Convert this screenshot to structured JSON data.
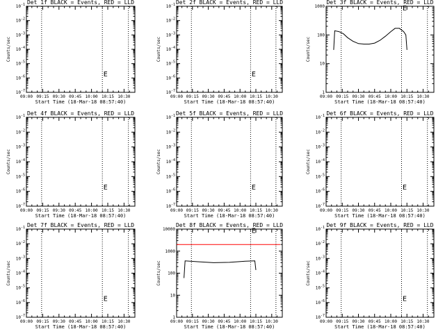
{
  "figure": {
    "xlabel": "Start Time (18-Mar-18 08:57:40)",
    "ylabel": "Counts/sec"
  },
  "chart_data": [
    {
      "type": "line",
      "title": "Det 1f BLACK = Events, RED = LLD",
      "xlabel": "Start Time (18-Mar-18 08:57:40)",
      "ylabel": "Counts/sec",
      "xlim": [
        "09:00",
        "10:40"
      ],
      "x_ticks": [
        "09:00",
        "09:15",
        "09:30",
        "09:45",
        "10:00",
        "10:15",
        "10:30"
      ],
      "y_scale": "log",
      "ylim": [
        1e-07,
        0.1
      ],
      "y_ticks": [
        "10^-7",
        "10^-6",
        "10^-5",
        "10^-4",
        "10^-3",
        "10^-2",
        "10^-1"
      ],
      "vlines": [
        "09:14",
        "10:10",
        "10:34"
      ],
      "annotations": [
        {
          "text": "E",
          "x": "10:11",
          "y": 2e-06
        }
      ],
      "series": []
    },
    {
      "type": "line",
      "title": "Det 2f BLACK = Events, RED = LLD",
      "xlabel": "Start Time (18-Mar-18 08:57:40)",
      "ylabel": "Counts/sec",
      "xlim": [
        "09:00",
        "10:40"
      ],
      "x_ticks": [
        "09:00",
        "09:15",
        "09:30",
        "09:45",
        "10:00",
        "10:15",
        "10:30"
      ],
      "y_scale": "log",
      "ylim": [
        1e-07,
        0.1
      ],
      "y_ticks": [
        "10^-7",
        "10^-6",
        "10^-5",
        "10^-4",
        "10^-3",
        "10^-2",
        "10^-1"
      ],
      "vlines": [
        "09:14",
        "10:10",
        "10:34"
      ],
      "annotations": [
        {
          "text": "E",
          "x": "10:11",
          "y": 2e-06
        }
      ],
      "series": []
    },
    {
      "type": "line",
      "title": "Det 3f BLACK = Events, RED = LLD",
      "xlabel": "Start Time (18-Mar-18 08:57:40)",
      "ylabel": "Counts/sec",
      "xlim": [
        "09:00",
        "10:40"
      ],
      "x_ticks": [
        "09:00",
        "09:15",
        "09:30",
        "09:45",
        "10:00",
        "10:15",
        "10:30"
      ],
      "y_scale": "log",
      "ylim": [
        1,
        1000
      ],
      "y_ticks": [
        "1",
        "10",
        "100",
        "1000"
      ],
      "vlines": [
        "09:14",
        "10:10",
        "10:34"
      ],
      "annotations": [
        {
          "text": "E",
          "x": "10:11",
          "y": 900
        }
      ],
      "series": [
        {
          "color": "#000000",
          "x": [
            "09:07",
            "09:08",
            "09:12",
            "09:16",
            "09:20",
            "09:25",
            "09:30",
            "09:35",
            "09:40",
            "09:45",
            "09:50",
            "09:55",
            "10:00",
            "10:04",
            "10:08",
            "10:12",
            "10:14",
            "10:15"
          ],
          "y": [
            30,
            140,
            130,
            110,
            80,
            60,
            50,
            48,
            48,
            52,
            65,
            90,
            130,
            170,
            170,
            130,
            100,
            30
          ]
        }
      ]
    },
    {
      "type": "line",
      "title": "Det 4f BLACK = Events, RED = LLD",
      "xlabel": "Start Time (18-Mar-18 08:57:40)",
      "ylabel": "Counts/sec",
      "xlim": [
        "09:00",
        "10:40"
      ],
      "x_ticks": [
        "09:00",
        "09:15",
        "09:30",
        "09:45",
        "10:00",
        "10:15",
        "10:30"
      ],
      "y_scale": "log",
      "ylim": [
        1e-07,
        0.1
      ],
      "y_ticks": [
        "10^-7",
        "10^-6",
        "10^-5",
        "10^-4",
        "10^-3",
        "10^-2",
        "10^-1"
      ],
      "vlines": [
        "09:14",
        "10:10",
        "10:34"
      ],
      "annotations": [
        {
          "text": "E",
          "x": "10:11",
          "y": 2e-06
        }
      ],
      "series": []
    },
    {
      "type": "line",
      "title": "Det 5f BLACK = Events, RED = LLD",
      "xlabel": "Start Time (18-Mar-18 08:57:40)",
      "ylabel": "Counts/sec",
      "xlim": [
        "09:00",
        "10:40"
      ],
      "x_ticks": [
        "09:00",
        "09:15",
        "09:30",
        "09:45",
        "10:00",
        "10:15",
        "10:30"
      ],
      "y_scale": "log",
      "ylim": [
        1e-07,
        0.1
      ],
      "y_ticks": [
        "10^-7",
        "10^-6",
        "10^-5",
        "10^-4",
        "10^-3",
        "10^-2",
        "10^-1"
      ],
      "vlines": [
        "09:14",
        "10:10",
        "10:34"
      ],
      "annotations": [
        {
          "text": "E",
          "x": "10:11",
          "y": 2e-06
        }
      ],
      "series": []
    },
    {
      "type": "line",
      "title": "Det 6f BLACK = Events, RED = LLD",
      "xlabel": "Start Time (18-Mar-18 08:57:40)",
      "ylabel": "Counts/sec",
      "xlim": [
        "09:00",
        "10:40"
      ],
      "x_ticks": [
        "09:00",
        "09:15",
        "09:30",
        "09:45",
        "10:00",
        "10:15",
        "10:30"
      ],
      "y_scale": "log",
      "ylim": [
        1e-07,
        0.1
      ],
      "y_ticks": [
        "10^-7",
        "10^-6",
        "10^-5",
        "10^-4",
        "10^-3",
        "10^-2",
        "10^-1"
      ],
      "vlines": [
        "09:14",
        "10:10",
        "10:34"
      ],
      "annotations": [
        {
          "text": "E",
          "x": "10:11",
          "y": 2e-06
        }
      ],
      "series": []
    },
    {
      "type": "line",
      "title": "Det 7f BLACK = Events, RED = LLD",
      "xlabel": "Start Time (18-Mar-18 08:57:40)",
      "ylabel": "Counts/sec",
      "xlim": [
        "09:00",
        "10:40"
      ],
      "x_ticks": [
        "09:00",
        "09:15",
        "09:30",
        "09:45",
        "10:00",
        "10:15",
        "10:30"
      ],
      "y_scale": "log",
      "ylim": [
        1e-07,
        0.1
      ],
      "y_ticks": [
        "10^-7",
        "10^-6",
        "10^-5",
        "10^-4",
        "10^-3",
        "10^-2",
        "10^-1"
      ],
      "vlines": [
        "09:14",
        "10:10",
        "10:34"
      ],
      "annotations": [
        {
          "text": "E",
          "x": "10:11",
          "y": 2e-06
        }
      ],
      "series": []
    },
    {
      "type": "line",
      "title": "Det 8f BLACK = Events, RED = LLD",
      "xlabel": "Start Time (18-Mar-18 08:57:40)",
      "ylabel": "Counts/sec",
      "xlim": [
        "09:00",
        "10:40"
      ],
      "x_ticks": [
        "09:00",
        "09:15",
        "09:30",
        "09:45",
        "10:00",
        "10:15",
        "10:30"
      ],
      "y_scale": "log",
      "ylim": [
        1,
        10000
      ],
      "y_ticks": [
        "1",
        "10",
        "100",
        "1000",
        "10000"
      ],
      "vlines": [
        "09:14",
        "10:10",
        "10:34"
      ],
      "annotations": [
        {
          "text": "E",
          "x": "10:11",
          "y": 9000
        }
      ],
      "series": [
        {
          "color": "#ff0000",
          "x": [
            "09:00",
            "10:38"
          ],
          "y": [
            2000,
            2000
          ]
        },
        {
          "color": "#000000",
          "x": [
            "09:07",
            "09:08",
            "09:20",
            "09:35",
            "09:50",
            "10:05",
            "10:14",
            "10:15"
          ],
          "y": [
            60,
            360,
            330,
            300,
            310,
            350,
            360,
            140
          ]
        }
      ]
    },
    {
      "type": "line",
      "title": "Det 9f BLACK = Events, RED = LLD",
      "xlabel": "Start Time (18-Mar-18 08:57:40)",
      "ylabel": "Counts/sec",
      "xlim": [
        "09:00",
        "10:40"
      ],
      "x_ticks": [
        "09:00",
        "09:15",
        "09:30",
        "09:45",
        "10:00",
        "10:15",
        "10:30"
      ],
      "y_scale": "log",
      "ylim": [
        1e-07,
        0.1
      ],
      "y_ticks": [
        "10^-7",
        "10^-6",
        "10^-5",
        "10^-4",
        "10^-3",
        "10^-2",
        "10^-1"
      ],
      "vlines": [
        "09:14",
        "10:10",
        "10:34"
      ],
      "annotations": [
        {
          "text": "E",
          "x": "10:11",
          "y": 2e-06
        }
      ],
      "series": []
    }
  ]
}
